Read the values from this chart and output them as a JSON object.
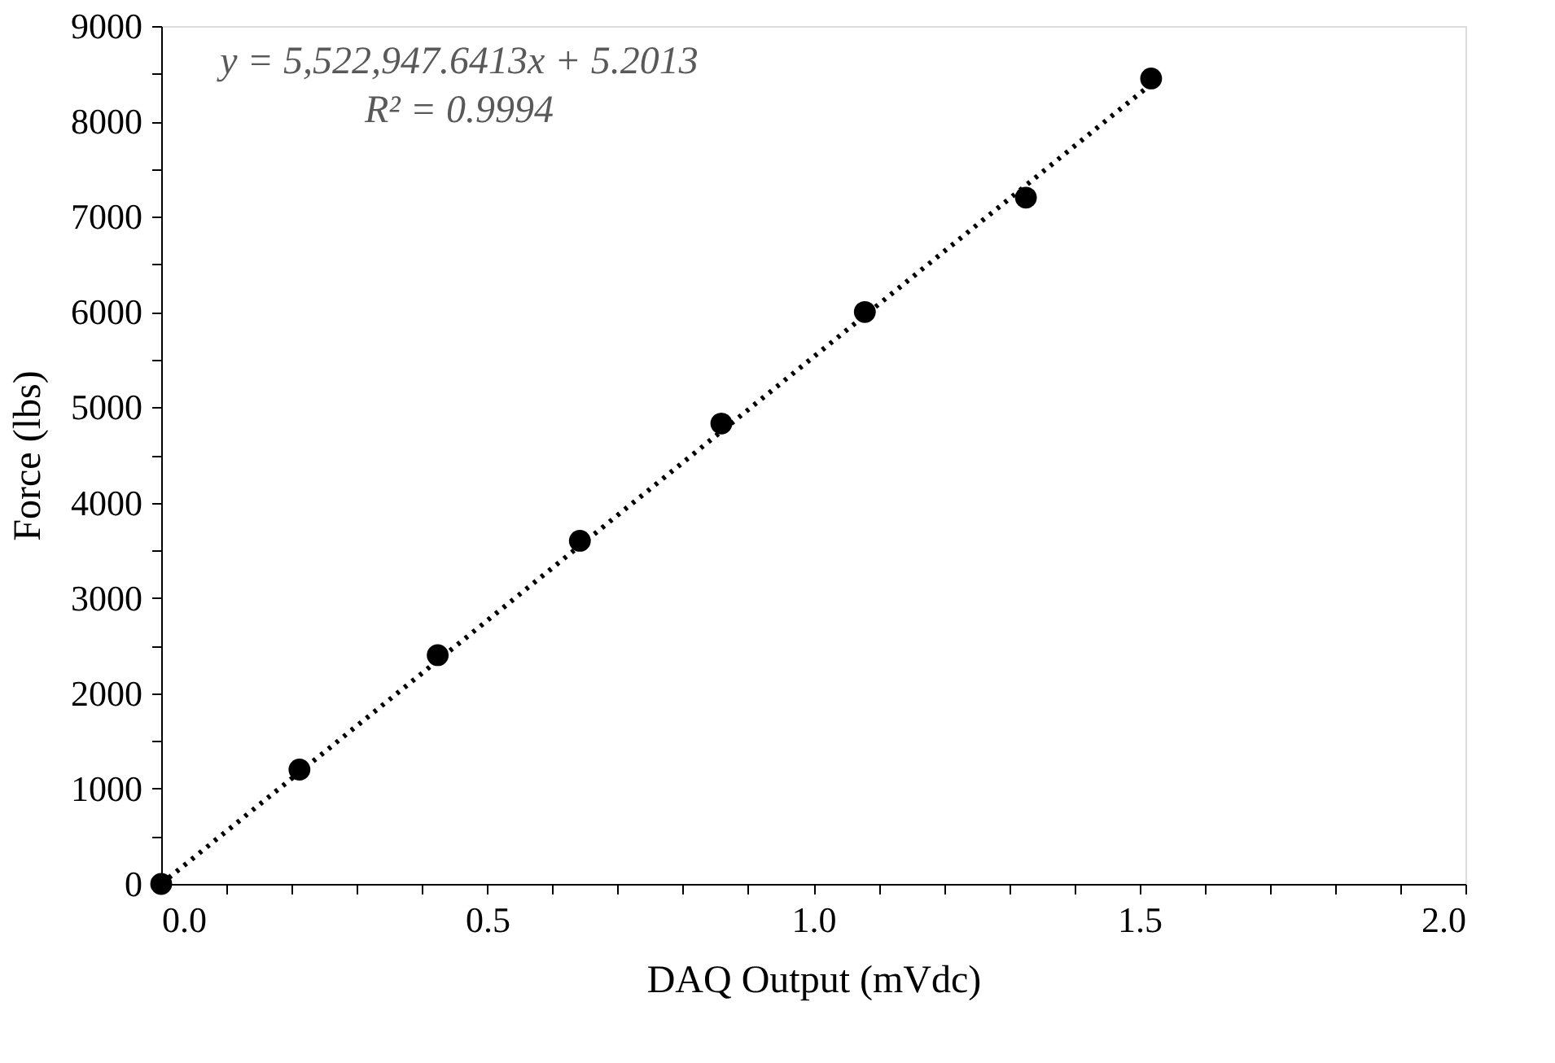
{
  "chart_data": {
    "type": "scatter",
    "xlabel": "DAQ Output (mVdc)",
    "ylabel": "Force (lbs)",
    "annotations": [
      "y = 5,522,947.6413x + 5.2013",
      "R² = 0.9994"
    ],
    "series": [
      {
        "color": "#000000",
        "marker": "circle",
        "x": [
          0,
          0.212,
          0.424,
          0.642,
          0.859,
          1.079,
          1.326,
          1.518
        ],
        "values": [
          0,
          1200,
          2400,
          3600,
          4830,
          6000,
          7200,
          8450
        ]
      },
      {
        "type": "line",
        "color": "#000000",
        "line_style": "dotted",
        "x": [
          0,
          1.518
        ],
        "values": [
          0,
          8390
        ]
      }
    ],
    "xlim": [
      0,
      2.0
    ],
    "ylim": [
      0,
      9000
    ],
    "xticks": [
      {
        "value": 0,
        "label": "0.0"
      },
      {
        "value": 0.1,
        "label": null
      },
      {
        "value": 0.2,
        "label": null
      },
      {
        "value": 0.3,
        "label": null
      },
      {
        "value": 0.4,
        "label": null
      },
      {
        "value": 0.5,
        "label": "0.5"
      },
      {
        "value": 0.6,
        "label": null
      },
      {
        "value": 0.7,
        "label": null
      },
      {
        "value": 0.8,
        "label": null
      },
      {
        "value": 0.9,
        "label": null
      },
      {
        "value": 1.0,
        "label": "1.0"
      },
      {
        "value": 1.1,
        "label": null
      },
      {
        "value": 1.2,
        "label": null
      },
      {
        "value": 1.3,
        "label": null
      },
      {
        "value": 1.4,
        "label": null
      },
      {
        "value": 1.5,
        "label": "1.5"
      },
      {
        "value": 1.6,
        "label": null
      },
      {
        "value": 1.7,
        "label": null
      },
      {
        "value": 1.8,
        "label": null
      },
      {
        "value": 1.9,
        "label": null
      },
      {
        "value": 2.0,
        "label": "2.0"
      }
    ],
    "yticks": [
      0,
      {
        "value": 500,
        "label": null
      },
      1000,
      {
        "value": 1500,
        "label": null
      },
      2000,
      {
        "value": 2500,
        "label": null
      },
      3000,
      {
        "value": 3500,
        "label": null
      },
      4000,
      {
        "value": 4500,
        "label": null
      },
      5000,
      {
        "value": 5500,
        "label": null
      },
      6000,
      {
        "value": 6500,
        "label": null
      },
      7000,
      {
        "value": 7500,
        "label": null
      },
      8000,
      {
        "value": 8500,
        "label": null
      },
      9000
    ]
  }
}
